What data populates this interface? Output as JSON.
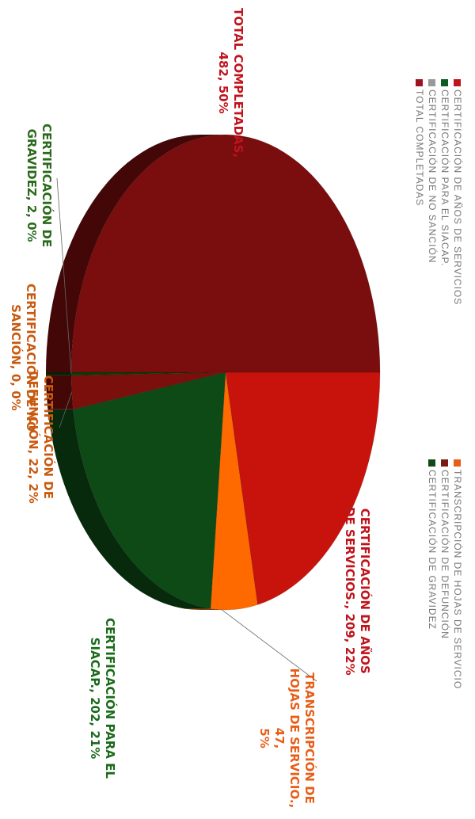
{
  "chart_data": {
    "type": "pie",
    "categories": [
      "CERTIFICACIÓN DE AÑOS DE SERVICIOS.",
      "TRANSCRIPCIÓN DE HOJAS DE SERVICIO.",
      "CERTIFICACIÓN PARA EL SIACAP.",
      "CERTIFICACIÓN DE DEFUNCIÓN",
      "CERTIFICACIÓN DE NO SANCIÓN",
      "CERTIFICACIÓN DE GRAVIDEZ",
      "TOTAL COMPLETADAS"
    ],
    "values": [
      209,
      47,
      202,
      22,
      0,
      2,
      482
    ],
    "percents": [
      "22%",
      "5%",
      "21%",
      "2%",
      "0%",
      "0%",
      "50%"
    ],
    "colors": [
      "#c8130d",
      "#ff6a00",
      "#0d4a16",
      "#7a0f0b",
      "#8a8a8a",
      "#0a3a0a",
      "#7a0d0d"
    ],
    "legend": {
      "left_column": [
        {
          "label": "CERTIFICACIÓN DE AÑOS DE SERVICIOS",
          "color": "#c0141c"
        },
        {
          "label": "CERTIFICACIÓN PARA EL SIACAP.",
          "color": "#0d5a22"
        },
        {
          "label": "CERTIFICACIÓN DE NO SANCIÓN",
          "color": "#999999"
        },
        {
          "label": "TOTAL COMPLETADAS",
          "color": "#9a1422"
        }
      ],
      "right_column": [
        {
          "label": "TRANSCRIPCIÓN DE HOJAS DE SERVICIO",
          "color": "#e85d17"
        },
        {
          "label": "CERTIFICACIÓN DE DEFUNCIÓN",
          "color": "#7a1a12"
        },
        {
          "label": "CERTIFICACIÓN DE GRAVIDEZ",
          "color": "#0d4a16"
        }
      ]
    },
    "data_labels": [
      {
        "line1": "CERTIFICACIÓN DE AÑOS",
        "line2": "DE SERVICIOS., 209, 22%",
        "color": "#c0141c"
      },
      {
        "line1": "TRANSCRIPCIÓN DE",
        "line2": "HOJAS DE SERVICIO., 47,",
        "line3": "5%",
        "color": "#e85d17"
      },
      {
        "line1": "CERTIFICACIÓN PARA EL",
        "line2": "SIACAP., 202, 21%",
        "color": "#1a6a1a"
      },
      {
        "line1": "CERTIFICACIÓN DE",
        "line2": "DEFUNCIÓN, 22, 2%",
        "color": "#c85a10"
      },
      {
        "line1": "CERTIFICACIÓN DE NO",
        "line2": "SANCIÓN, 0, 0%",
        "color": "#c85a10"
      },
      {
        "line1": "CERTIFICACIÓN DE",
        "line2": "GRAVIDEZ, 2, 0%",
        "color": "#2a6a1a"
      },
      {
        "line1": "TOTAL COMPLETADAS,",
        "line2": "482, 50%",
        "color": "#c0141c"
      }
    ]
  }
}
